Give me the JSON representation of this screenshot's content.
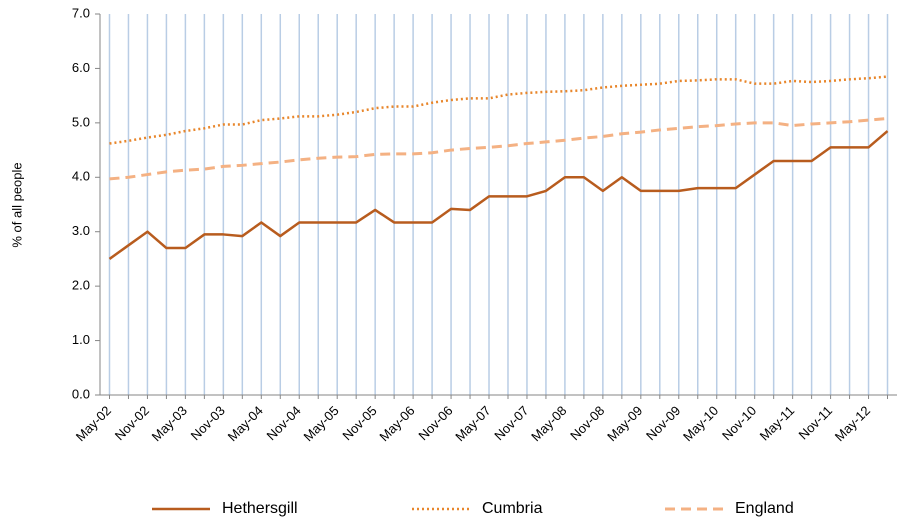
{
  "chart_data": {
    "type": "line",
    "y_label": "% of all people",
    "categories": [
      "May-02",
      null,
      "Nov-02",
      null,
      "May-03",
      null,
      "Nov-03",
      null,
      "May-04",
      null,
      "Nov-04",
      null,
      "May-05",
      null,
      "Nov-05",
      null,
      "May-06",
      null,
      "Nov-06",
      null,
      "May-07",
      null,
      "Nov-07",
      null,
      "May-08",
      null,
      "Nov-08",
      null,
      "May-09",
      null,
      "Nov-09",
      null,
      "May-10",
      null,
      "Nov-10",
      null,
      "May-11",
      null,
      "Nov-11",
      null,
      "May-12",
      null
    ],
    "series": [
      {
        "name": "Hethersgill",
        "color": "#b85c1e",
        "dash": "solid",
        "values": [
          2.5,
          2.75,
          3.0,
          2.7,
          2.7,
          2.95,
          2.95,
          2.92,
          3.17,
          2.92,
          3.17,
          3.17,
          3.17,
          3.17,
          3.4,
          3.17,
          3.17,
          3.17,
          3.42,
          3.4,
          3.65,
          3.65,
          3.65,
          3.75,
          4.0,
          4.0,
          3.75,
          4.0,
          3.75,
          3.75,
          3.75,
          3.8,
          3.8,
          3.8,
          4.05,
          4.3,
          4.3,
          4.3,
          4.55,
          4.55,
          4.55,
          4.85
        ]
      },
      {
        "name": "Cumbria",
        "color": "#e8862b",
        "dash": "dotted",
        "values": [
          4.62,
          4.67,
          4.73,
          4.78,
          4.85,
          4.9,
          4.97,
          4.97,
          5.05,
          5.08,
          5.12,
          5.12,
          5.15,
          5.2,
          5.27,
          5.3,
          5.3,
          5.37,
          5.42,
          5.45,
          5.45,
          5.52,
          5.55,
          5.57,
          5.58,
          5.6,
          5.65,
          5.68,
          5.7,
          5.72,
          5.77,
          5.78,
          5.8,
          5.8,
          5.72,
          5.72,
          5.77,
          5.75,
          5.77,
          5.8,
          5.82,
          5.85
        ]
      },
      {
        "name": "England",
        "color": "#f4b183",
        "dash": "dashed",
        "values": [
          3.97,
          4.0,
          4.05,
          4.1,
          4.13,
          4.15,
          4.2,
          4.22,
          4.25,
          4.28,
          4.32,
          4.35,
          4.37,
          4.38,
          4.42,
          4.43,
          4.43,
          4.45,
          4.5,
          4.53,
          4.55,
          4.58,
          4.62,
          4.65,
          4.68,
          4.72,
          4.75,
          4.8,
          4.83,
          4.87,
          4.9,
          4.93,
          4.95,
          4.98,
          5.0,
          5.0,
          4.95,
          4.98,
          5.0,
          5.02,
          5.05,
          5.08
        ]
      }
    ],
    "ylim": [
      0,
      7
    ],
    "yticks": [
      {
        "value": 0,
        "label": "0.0"
      },
      {
        "value": 1,
        "label": "1.0"
      },
      {
        "value": 2,
        "label": "2.0"
      },
      {
        "value": 3,
        "label": "3.0"
      },
      {
        "value": 4,
        "label": "4.0"
      },
      {
        "value": 5,
        "label": "5.0"
      },
      {
        "value": 6,
        "label": "6.0"
      },
      {
        "value": 7,
        "label": "7.0"
      }
    ],
    "grid": "x",
    "legend": "bottom"
  }
}
